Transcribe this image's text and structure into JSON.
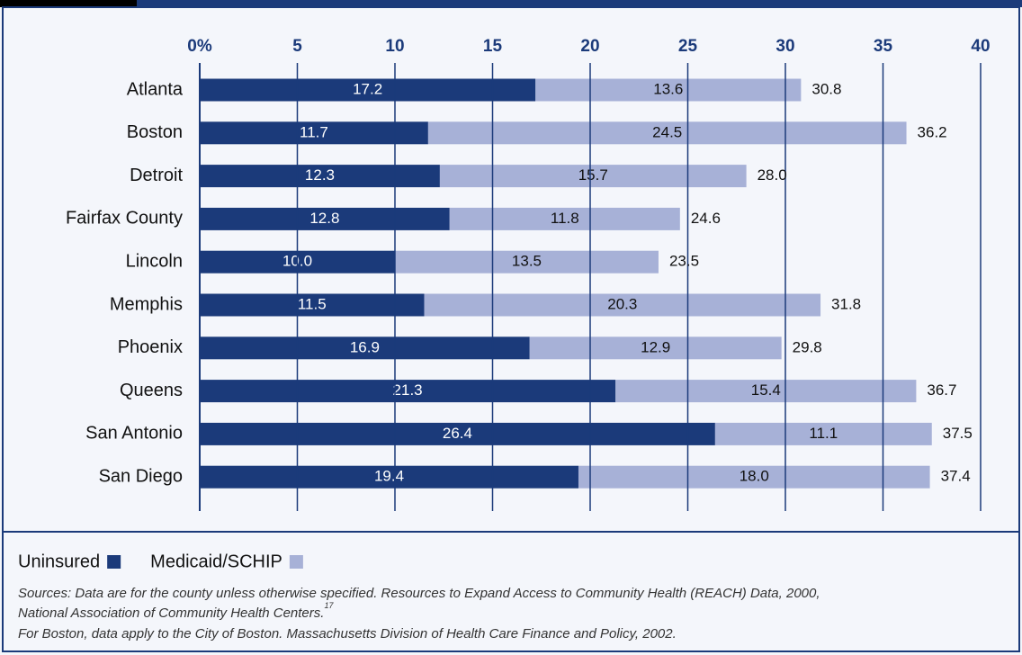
{
  "chart_data": {
    "type": "bar",
    "orientation": "horizontal",
    "stacked": true,
    "categories": [
      "Atlanta",
      "Boston",
      "Detroit",
      "Fairfax County",
      "Lincoln",
      "Memphis",
      "Phoenix",
      "Queens",
      "San Antonio",
      "San Diego"
    ],
    "series": [
      {
        "name": "Uninsured",
        "color": "#1b3a7a",
        "values": [
          17.2,
          11.7,
          12.3,
          12.8,
          10.0,
          11.5,
          16.9,
          21.3,
          26.4,
          19.4
        ],
        "value_labels": [
          "17.2",
          "11.7",
          "12.3",
          "12.8",
          "10.0",
          "11.5",
          "16.9",
          "21.3",
          "26.4",
          "19.4"
        ]
      },
      {
        "name": "Medicaid/SCHIP",
        "color": "#a7b1d7",
        "values": [
          13.6,
          24.5,
          15.7,
          11.8,
          13.5,
          20.3,
          12.9,
          15.4,
          11.1,
          18.0
        ],
        "value_labels": [
          "13.6",
          "24.5",
          "15.7",
          "11.8",
          "13.5",
          "20.3",
          "12.9",
          "15.4",
          "11.1",
          "18.0"
        ]
      }
    ],
    "totals": [
      {
        "value": 30.8,
        "label": "30.8"
      },
      {
        "value": 36.2,
        "label": "36.2"
      },
      {
        "value": 28.0,
        "label": "28.0"
      },
      {
        "value": 24.6,
        "label": "24.6"
      },
      {
        "value": 23.5,
        "label": "23.5"
      },
      {
        "value": 31.8,
        "label": "31.8"
      },
      {
        "value": 29.8,
        "label": "29.8"
      },
      {
        "value": 36.7,
        "label": "36.7"
      },
      {
        "value": 37.5,
        "label": "37.5"
      },
      {
        "value": 37.4,
        "label": "37.4"
      }
    ],
    "xlim": [
      0,
      40
    ],
    "xticks": [
      {
        "value": 0,
        "label": "0%"
      },
      5,
      10,
      15,
      20,
      25,
      30,
      35,
      40
    ],
    "grid": true,
    "sources": [
      "Sources: Data are for the county unless otherwise specified. Resources to Expand Access to Community Health (REACH) Data, 2000,",
      "National Association of Community Health Centers.",
      "For Boston, data apply to the City of Boston. Massachusetts Division of Health Care Finance and Policy, 2002."
    ],
    "footnote_ref": "17"
  }
}
